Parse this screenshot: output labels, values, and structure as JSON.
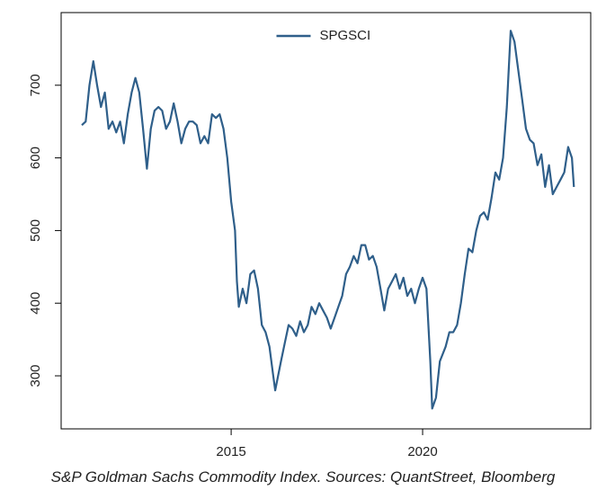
{
  "chart_data": {
    "type": "line",
    "caption": "S&P Goldman Sachs Commodity Index. Sources: QuantStreet, Bloomberg",
    "x": [
      2011.1,
      2011.2,
      2011.3,
      2011.4,
      2011.5,
      2011.6,
      2011.7,
      2011.8,
      2011.9,
      2012.0,
      2012.1,
      2012.2,
      2012.3,
      2012.4,
      2012.5,
      2012.6,
      2012.7,
      2012.8,
      2012.9,
      2013.0,
      2013.1,
      2013.2,
      2013.3,
      2013.4,
      2013.5,
      2013.6,
      2013.7,
      2013.8,
      2013.9,
      2014.0,
      2014.1,
      2014.2,
      2014.3,
      2014.4,
      2014.5,
      2014.6,
      2014.7,
      2014.8,
      2014.9,
      2015.0,
      2015.1,
      2015.15,
      2015.2,
      2015.3,
      2015.4,
      2015.5,
      2015.6,
      2015.7,
      2015.8,
      2015.9,
      2016.0,
      2016.1,
      2016.15,
      2016.3,
      2016.4,
      2016.5,
      2016.6,
      2016.7,
      2016.8,
      2016.9,
      2017.0,
      2017.1,
      2017.2,
      2017.3,
      2017.4,
      2017.5,
      2017.6,
      2017.7,
      2017.8,
      2017.9,
      2018.0,
      2018.1,
      2018.2,
      2018.3,
      2018.4,
      2018.5,
      2018.6,
      2018.7,
      2018.8,
      2018.9,
      2019.0,
      2019.1,
      2019.2,
      2019.3,
      2019.4,
      2019.5,
      2019.6,
      2019.7,
      2019.8,
      2019.9,
      2020.0,
      2020.1,
      2020.2,
      2020.25,
      2020.35,
      2020.45,
      2020.6,
      2020.7,
      2020.8,
      2020.9,
      2021.0,
      2021.1,
      2021.2,
      2021.3,
      2021.4,
      2021.5,
      2021.6,
      2021.7,
      2021.8,
      2021.9,
      2022.0,
      2022.1,
      2022.2,
      2022.3,
      2022.4,
      2022.5,
      2022.6,
      2022.7,
      2022.8,
      2022.9,
      2023.0,
      2023.1,
      2023.2,
      2023.3,
      2023.4,
      2023.5,
      2023.6,
      2023.7,
      2023.8,
      2023.9,
      2023.95
    ],
    "series": [
      {
        "name": "SPGSCI",
        "color": "#2f5f8a",
        "values": [
          645,
          650,
          700,
          733,
          700,
          670,
          690,
          640,
          650,
          635,
          650,
          620,
          660,
          690,
          710,
          690,
          640,
          585,
          640,
          665,
          670,
          665,
          640,
          650,
          675,
          650,
          620,
          640,
          650,
          650,
          645,
          620,
          630,
          620,
          660,
          655,
          660,
          640,
          600,
          540,
          500,
          430,
          395,
          420,
          400,
          440,
          445,
          420,
          370,
          360,
          340,
          300,
          280,
          320,
          345,
          370,
          365,
          355,
          375,
          360,
          370,
          395,
          385,
          400,
          390,
          380,
          365,
          380,
          395,
          410,
          440,
          450,
          465,
          455,
          480,
          480,
          460,
          465,
          450,
          420,
          390,
          420,
          430,
          440,
          420,
          435,
          410,
          420,
          400,
          420,
          435,
          420,
          320,
          255,
          270,
          320,
          340,
          360,
          360,
          370,
          400,
          440,
          475,
          470,
          500,
          520,
          525,
          515,
          545,
          580,
          570,
          600,
          670,
          775,
          760,
          720,
          680,
          640,
          625,
          620,
          590,
          605,
          560,
          590,
          550,
          560,
          570,
          580,
          615,
          600,
          560
        ]
      }
    ],
    "xlim": [
      2010.56,
      2024.39
    ],
    "xticks": [
      2015,
      2020
    ],
    "ylim": [
      227,
      800
    ],
    "yticks": [
      300,
      400,
      500,
      600,
      700
    ],
    "legend": "top"
  }
}
